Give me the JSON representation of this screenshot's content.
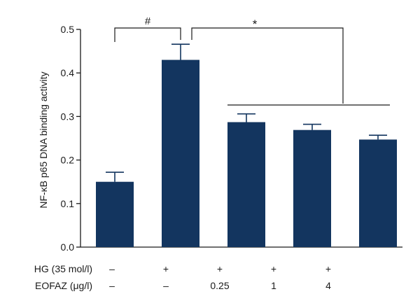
{
  "chart_data": {
    "type": "bar",
    "title": "",
    "xlabel": "",
    "ylabel": "NF-κB p65 DNA binding activity",
    "ylim": [
      0,
      0.5
    ],
    "yticks": [
      "0.0",
      "0.1",
      "0.2",
      "0.3",
      "0.4",
      "0.5"
    ],
    "grid": false,
    "bar_color": "#13355f",
    "series": [
      {
        "values": [
          0.15,
          0.43,
          0.287,
          0.269,
          0.247
        ],
        "errors": [
          0.022,
          0.036,
          0.019,
          0.013,
          0.01
        ]
      }
    ],
    "conditions": [
      {
        "label": "HG (35 mol/l)",
        "values": [
          "–",
          "+",
          "+",
          "+",
          "+"
        ]
      },
      {
        "label": "EOFAZ (μg/l)",
        "values": [
          "–",
          "–",
          "0.25",
          "1",
          "4"
        ]
      }
    ],
    "annotations": [
      {
        "symbol": "#",
        "from_bar": 0,
        "to_bar": 1
      },
      {
        "symbol": "*",
        "from_bar": 1,
        "to_bars": [
          2,
          3,
          4
        ]
      }
    ]
  }
}
